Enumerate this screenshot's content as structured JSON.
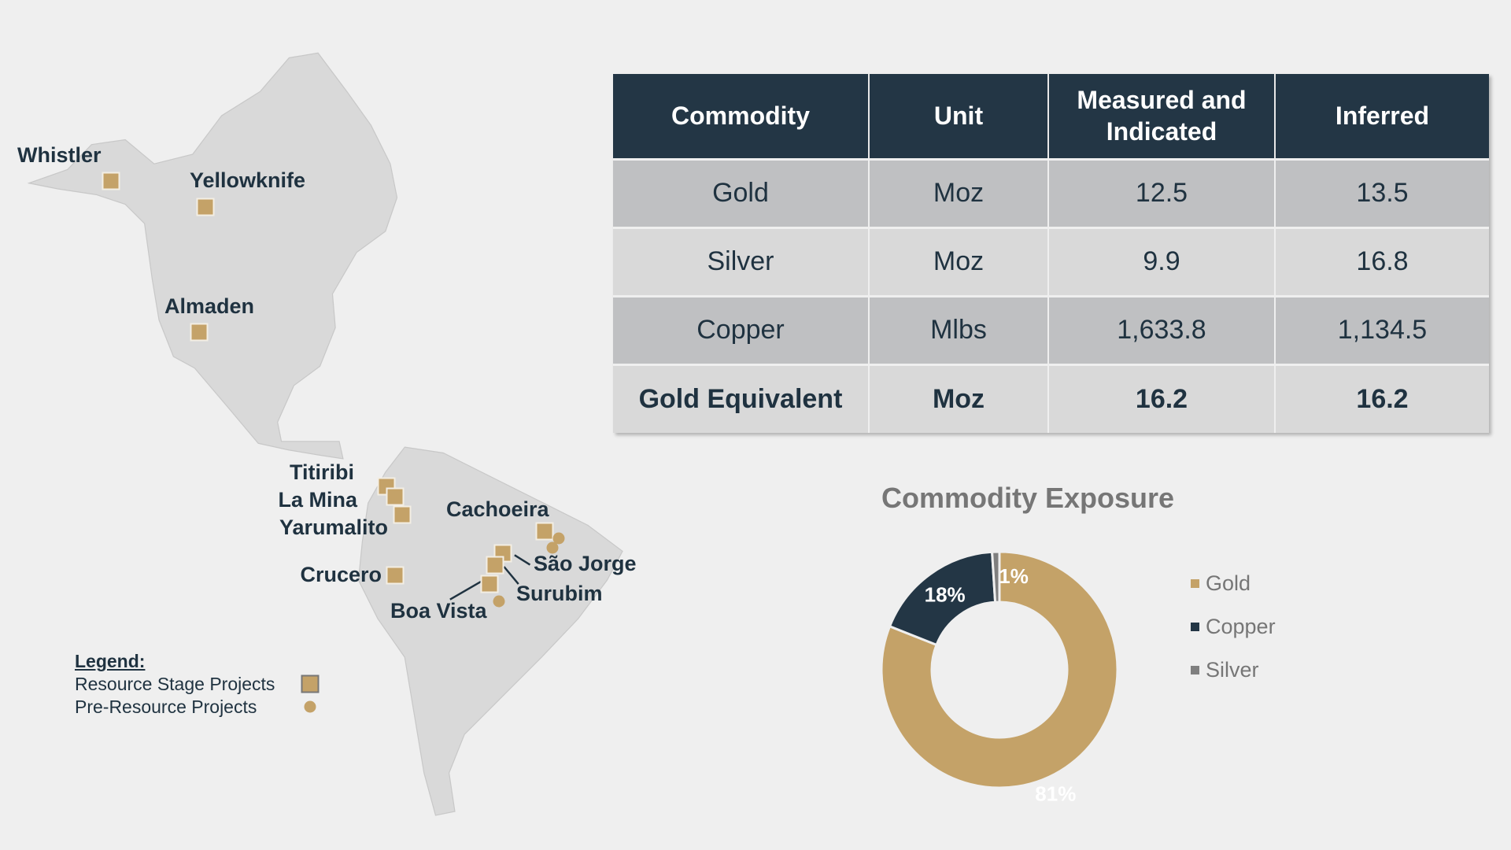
{
  "map": {
    "projects": [
      {
        "name": "Whistler",
        "type": "resource"
      },
      {
        "name": "Yellowknife",
        "type": "resource"
      },
      {
        "name": "Almaden",
        "type": "resource"
      },
      {
        "name": "Titiribi",
        "type": "resource"
      },
      {
        "name": "La Mina",
        "type": "resource"
      },
      {
        "name": "Yarumalito",
        "type": "resource"
      },
      {
        "name": "Cachoeira",
        "type": "resource"
      },
      {
        "name": "São Jorge",
        "type": "resource"
      },
      {
        "name": "Surubim",
        "type": "resource"
      },
      {
        "name": "Boa Vista",
        "type": "resource"
      },
      {
        "name": "Crucero",
        "type": "resource"
      }
    ],
    "legend": {
      "title": "Legend:",
      "resource": "Resource Stage Projects",
      "pre_resource": "Pre-Resource Projects"
    }
  },
  "table": {
    "headers": [
      "Commodity",
      "Unit",
      "Measured and Indicated",
      "Inferred"
    ],
    "rows": [
      [
        "Gold",
        "Moz",
        "12.5",
        "13.5"
      ],
      [
        "Silver",
        "Moz",
        "9.9",
        "16.8"
      ],
      [
        "Copper",
        "Mlbs",
        "1,633.8",
        "1,134.5"
      ],
      [
        "Gold Equivalent",
        "Moz",
        "16.2",
        "16.2"
      ]
    ]
  },
  "chart_data": {
    "type": "pie",
    "title": "Commodity Exposure",
    "categories": [
      "Gold",
      "Copper",
      "Silver"
    ],
    "values": [
      81,
      18,
      1
    ],
    "labels": [
      "81%",
      "18%",
      "1%"
    ],
    "colors": [
      "#c4a268",
      "#233645",
      "#7f7f7f"
    ],
    "legend": "right"
  }
}
